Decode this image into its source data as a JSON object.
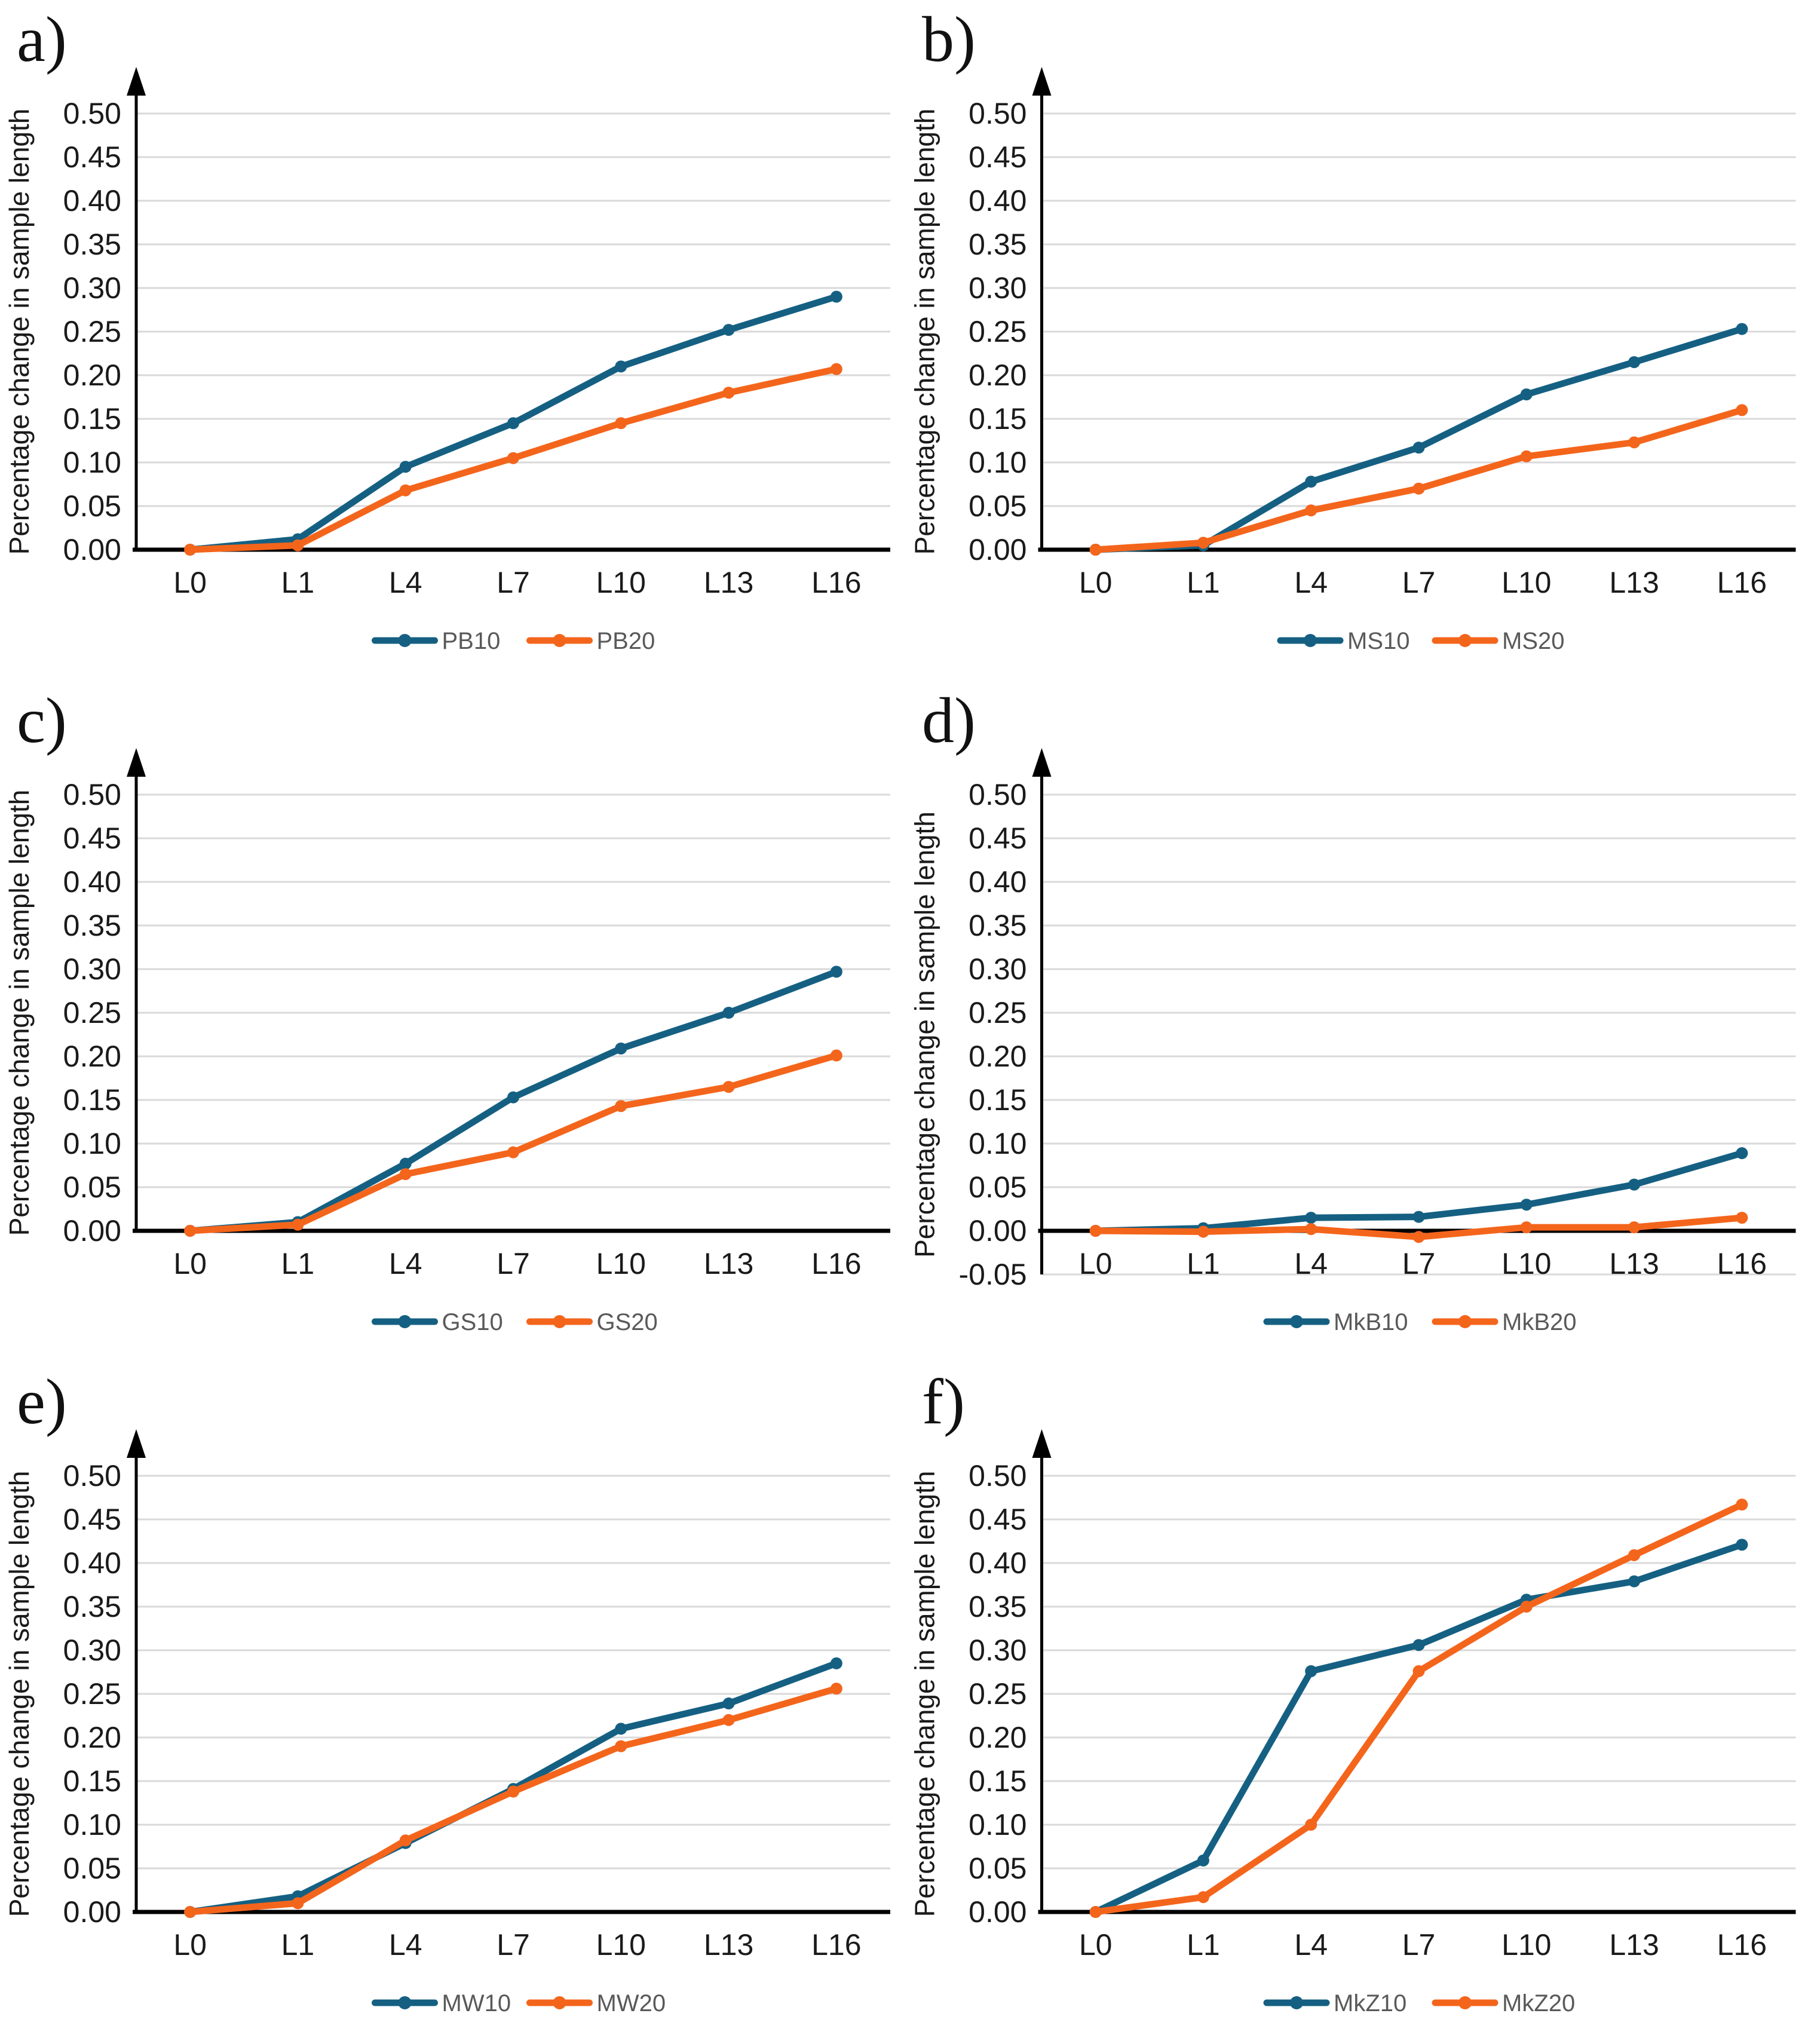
{
  "figure": {
    "background": "#ffffff"
  },
  "colors": {
    "series10": "#156082",
    "series20": "#F4651C",
    "gridline": "#D9D9D9",
    "axis": "#000000",
    "legend_text": "#595959",
    "tick_text": "#1a1a1a"
  },
  "chart_data": [
    {
      "panel_label": "a)",
      "type": "line",
      "title": "",
      "xlabel": "",
      "ylabel": "Percentage change in sample length",
      "categories": [
        "L0",
        "L1",
        "L4",
        "L7",
        "L10",
        "L13",
        "L16"
      ],
      "ylim": [
        0,
        0.5
      ],
      "ytick_step": 0.05,
      "grid": true,
      "legend_position": "bottom",
      "series": [
        {
          "name": "PB10",
          "color": "series10",
          "values": [
            0,
            0.012,
            0.095,
            0.145,
            0.21,
            0.252,
            0.29
          ]
        },
        {
          "name": "PB20",
          "color": "series20",
          "values": [
            0,
            0.005,
            0.068,
            0.105,
            0.145,
            0.18,
            0.207
          ]
        }
      ]
    },
    {
      "panel_label": "b)",
      "type": "line",
      "title": "",
      "xlabel": "",
      "ylabel": "Percentage change in sample length",
      "categories": [
        "L0",
        "L1",
        "L4",
        "L7",
        "L10",
        "L13",
        "L16"
      ],
      "ylim": [
        0,
        0.5
      ],
      "ytick_step": 0.05,
      "grid": true,
      "legend_position": "bottom",
      "series": [
        {
          "name": "MS10",
          "color": "series10",
          "values": [
            0,
            0.005,
            0.078,
            0.117,
            0.178,
            0.215,
            0.253
          ]
        },
        {
          "name": "MS20",
          "color": "series20",
          "values": [
            0,
            0.008,
            0.045,
            0.07,
            0.107,
            0.123,
            0.16
          ]
        }
      ]
    },
    {
      "panel_label": "c)",
      "type": "line",
      "title": "",
      "xlabel": "",
      "ylabel": "Percentage change in sample length",
      "categories": [
        "L0",
        "L1",
        "L4",
        "L7",
        "L10",
        "L13",
        "L16"
      ],
      "ylim": [
        0,
        0.5
      ],
      "ytick_step": 0.05,
      "grid": true,
      "legend_position": "bottom",
      "series": [
        {
          "name": "GS10",
          "color": "series10",
          "values": [
            0,
            0.01,
            0.077,
            0.153,
            0.209,
            0.25,
            0.297
          ]
        },
        {
          "name": "GS20",
          "color": "series20",
          "values": [
            0,
            0.007,
            0.065,
            0.09,
            0.143,
            0.165,
            0.201
          ]
        }
      ]
    },
    {
      "panel_label": "d)",
      "type": "line",
      "title": "",
      "xlabel": "",
      "ylabel": "Percentage change in sample length",
      "categories": [
        "L0",
        "L1",
        "L4",
        "L7",
        "L10",
        "L13",
        "L16"
      ],
      "ylim": [
        -0.05,
        0.5
      ],
      "ytick_step": 0.05,
      "grid": true,
      "legend_position": "bottom",
      "series": [
        {
          "name": "MkB10",
          "color": "series10",
          "values": [
            0,
            0.003,
            0.015,
            0.016,
            0.03,
            0.053,
            0.089
          ]
        },
        {
          "name": "MkB20",
          "color": "series20",
          "values": [
            0,
            -0.001,
            0.002,
            -0.007,
            0.004,
            0.004,
            0.015
          ]
        }
      ]
    },
    {
      "panel_label": "e)",
      "type": "line",
      "title": "",
      "xlabel": "",
      "ylabel": "Percentage change in sample length",
      "categories": [
        "L0",
        "L1",
        "L4",
        "L7",
        "L10",
        "L13",
        "L16"
      ],
      "ylim": [
        0,
        0.5
      ],
      "ytick_step": 0.05,
      "grid": true,
      "legend_position": "bottom",
      "series": [
        {
          "name": "MW10",
          "color": "series10",
          "values": [
            0,
            0.018,
            0.079,
            0.141,
            0.21,
            0.239,
            0.285
          ]
        },
        {
          "name": "MW20",
          "color": "series20",
          "values": [
            0,
            0.01,
            0.082,
            0.138,
            0.19,
            0.22,
            0.256
          ]
        }
      ]
    },
    {
      "panel_label": "f)",
      "type": "line",
      "title": "",
      "xlabel": "",
      "ylabel": "Percentage change in sample length",
      "categories": [
        "L0",
        "L1",
        "L4",
        "L7",
        "L10",
        "L13",
        "L16"
      ],
      "ylim": [
        0,
        0.5
      ],
      "ytick_step": 0.05,
      "grid": true,
      "legend_position": "bottom",
      "series": [
        {
          "name": "MkZ10",
          "color": "series10",
          "values": [
            0,
            0.059,
            0.276,
            0.306,
            0.358,
            0.379,
            0.421
          ]
        },
        {
          "name": "MkZ20",
          "color": "series20",
          "values": [
            0,
            0.017,
            0.1,
            0.276,
            0.35,
            0.409,
            0.467
          ]
        }
      ]
    }
  ]
}
